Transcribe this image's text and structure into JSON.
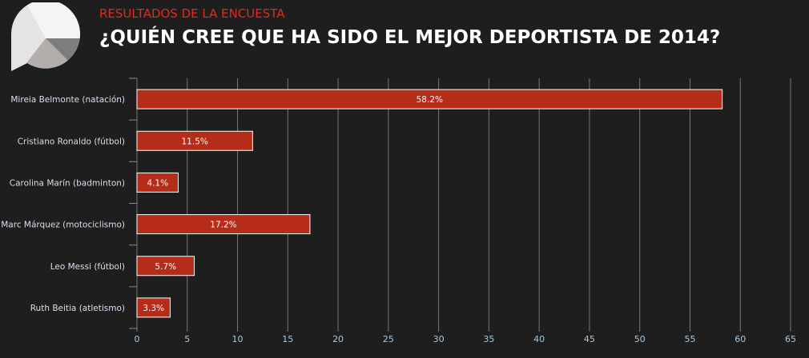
{
  "header": {
    "subtitle": "RESULTADOS DE LA ENCUESTA",
    "title": "¿QUIÉN CREE QUE HA SIDO EL MEJOR DEPORTISTA DE 2014?"
  },
  "colors": {
    "bar": "#b52d18",
    "accent": "#d7301f",
    "background": "#1e1e1e"
  },
  "chart_data": {
    "type": "bar",
    "orientation": "horizontal",
    "categories": [
      "Mireia Belmonte (natación)",
      "Cristiano Ronaldo (fútbol)",
      "Carolina Marín (badminton)",
      "Marc Márquez (motociclismo)",
      "Leo Messi (fútbol)",
      "Ruth Beitia (atletismo)"
    ],
    "values": [
      58.2,
      11.5,
      4.1,
      17.2,
      5.7,
      3.3
    ],
    "labels": [
      "58.2%",
      "11.5%",
      "4.1%",
      "17.2%",
      "5.7%",
      "3.3%"
    ],
    "xlim": [
      0,
      65
    ],
    "xticks": [
      0,
      5,
      10,
      15,
      20,
      25,
      30,
      35,
      40,
      45,
      50,
      55,
      60,
      65
    ],
    "grid": true
  }
}
